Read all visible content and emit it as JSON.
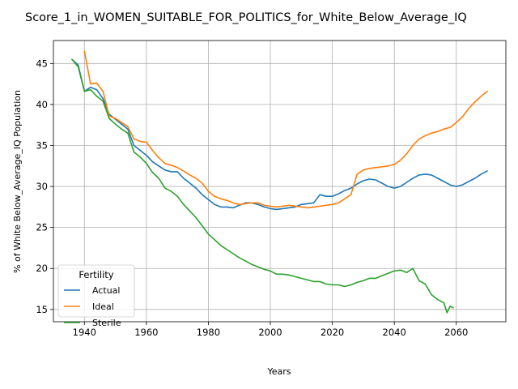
{
  "chart_data": {
    "type": "line",
    "title": "Score_1_in_WOMEN_SUITABLE_FOR_POLITICS_for_White_Below_Average_IQ",
    "xlabel": "Years",
    "ylabel": "% of White Below_Average_IQ Population",
    "xlim": [
      1930,
      2076
    ],
    "ylim": [
      13.5,
      47.8
    ],
    "xticks": [
      1940,
      1960,
      1980,
      2000,
      2020,
      2040,
      2060
    ],
    "yticks": [
      15,
      20,
      25,
      30,
      35,
      40,
      45
    ],
    "grid": true,
    "legend": {
      "title": "Fertility",
      "placement": "lower-left"
    },
    "series": [
      {
        "name": "Actual",
        "color": "#1f77b4",
        "x": [
          1936,
          1938,
          1940,
          1942,
          1944,
          1946,
          1948,
          1950,
          1952,
          1954,
          1956,
          1958,
          1960,
          1962,
          1964,
          1966,
          1968,
          1970,
          1972,
          1974,
          1976,
          1978,
          1980,
          1982,
          1984,
          1986,
          1988,
          1990,
          1992,
          1994,
          1996,
          1998,
          2000,
          2002,
          2004,
          2006,
          2008,
          2010,
          2012,
          2014,
          2016,
          2018,
          2020,
          2022,
          2024,
          2026,
          2028,
          2030,
          2032,
          2034,
          2036,
          2038,
          2040,
          2042,
          2044,
          2046,
          2048,
          2050,
          2052,
          2054,
          2056,
          2058,
          2060,
          2062,
          2064,
          2066,
          2068,
          2070
        ],
        "y": [
          45.5,
          44.8,
          41.6,
          42.1,
          41.8,
          40.7,
          38.8,
          38.2,
          37.6,
          37.0,
          35.0,
          34.4,
          33.8,
          33.0,
          32.5,
          32.0,
          31.8,
          31.8,
          31.0,
          30.4,
          29.8,
          29.0,
          28.4,
          27.8,
          27.5,
          27.5,
          27.4,
          27.7,
          28.0,
          28.0,
          27.8,
          27.5,
          27.3,
          27.2,
          27.3,
          27.4,
          27.5,
          27.8,
          27.9,
          28.0,
          29.0,
          28.8,
          28.8,
          29.1,
          29.5,
          29.8,
          30.3,
          30.7,
          30.9,
          30.8,
          30.4,
          30.0,
          29.8,
          30.0,
          30.5,
          31.0,
          31.4,
          31.5,
          31.4,
          31.0,
          30.6,
          30.2,
          30.0,
          30.2,
          30.6,
          31.0,
          31.5,
          31.9
        ]
      },
      {
        "name": "Ideal",
        "color": "#ff7f0e",
        "x": [
          1940,
          1942,
          1944,
          1946,
          1948,
          1950,
          1952,
          1954,
          1956,
          1958,
          1960,
          1962,
          1964,
          1966,
          1968,
          1970,
          1972,
          1974,
          1976,
          1978,
          1980,
          1982,
          1984,
          1986,
          1988,
          1990,
          1992,
          1994,
          1996,
          1998,
          2000,
          2002,
          2004,
          2006,
          2008,
          2010,
          2012,
          2014,
          2016,
          2018,
          2020,
          2022,
          2024,
          2026,
          2028,
          2030,
          2032,
          2034,
          2036,
          2038,
          2040,
          2042,
          2044,
          2046,
          2048,
          2050,
          2052,
          2054,
          2056,
          2058,
          2060,
          2062,
          2064,
          2066,
          2068,
          2070
        ],
        "y": [
          46.5,
          42.5,
          42.6,
          41.6,
          38.6,
          38.3,
          37.8,
          37.3,
          35.8,
          35.5,
          35.4,
          34.4,
          33.5,
          32.8,
          32.6,
          32.3,
          31.9,
          31.4,
          31.0,
          30.4,
          29.4,
          28.8,
          28.5,
          28.3,
          28.0,
          27.8,
          27.9,
          28.0,
          28.0,
          27.7,
          27.6,
          27.5,
          27.6,
          27.7,
          27.6,
          27.5,
          27.4,
          27.5,
          27.6,
          27.7,
          27.8,
          28.0,
          28.5,
          29.0,
          31.5,
          32.0,
          32.2,
          32.3,
          32.4,
          32.5,
          32.7,
          33.2,
          34.0,
          35.0,
          35.8,
          36.2,
          36.5,
          36.7,
          37.0,
          37.2,
          37.8,
          38.5,
          39.5,
          40.3,
          41.0,
          41.6
        ]
      },
      {
        "name": "Sterile",
        "color": "#2ca02c",
        "x": [
          1936,
          1938,
          1940,
          1942,
          1944,
          1946,
          1948,
          1950,
          1952,
          1954,
          1956,
          1958,
          1960,
          1962,
          1964,
          1966,
          1968,
          1970,
          1972,
          1974,
          1976,
          1978,
          1980,
          1982,
          1984,
          1986,
          1988,
          1990,
          1992,
          1994,
          1996,
          1998,
          2000,
          2002,
          2004,
          2006,
          2008,
          2010,
          2012,
          2014,
          2016,
          2018,
          2020,
          2022,
          2024,
          2026,
          2028,
          2030,
          2032,
          2034,
          2036,
          2038,
          2040,
          2042,
          2044,
          2046,
          2048,
          2050,
          2052,
          2054,
          2056,
          2057,
          2058,
          2059
        ],
        "y": [
          45.5,
          44.6,
          41.6,
          41.8,
          41.0,
          40.4,
          38.3,
          37.6,
          37.0,
          36.5,
          34.2,
          33.6,
          32.8,
          31.7,
          31.0,
          29.8,
          29.4,
          28.8,
          27.8,
          27.0,
          26.2,
          25.2,
          24.2,
          23.5,
          22.8,
          22.3,
          21.8,
          21.3,
          20.9,
          20.5,
          20.2,
          19.9,
          19.7,
          19.3,
          19.3,
          19.2,
          19.0,
          18.8,
          18.6,
          18.4,
          18.4,
          18.1,
          18.0,
          18.0,
          17.8,
          18.0,
          18.3,
          18.5,
          18.8,
          18.8,
          19.1,
          19.4,
          19.7,
          19.8,
          19.5,
          20.0,
          18.5,
          18.1,
          16.8,
          16.2,
          15.8,
          14.6,
          15.4,
          15.2
        ]
      }
    ]
  }
}
